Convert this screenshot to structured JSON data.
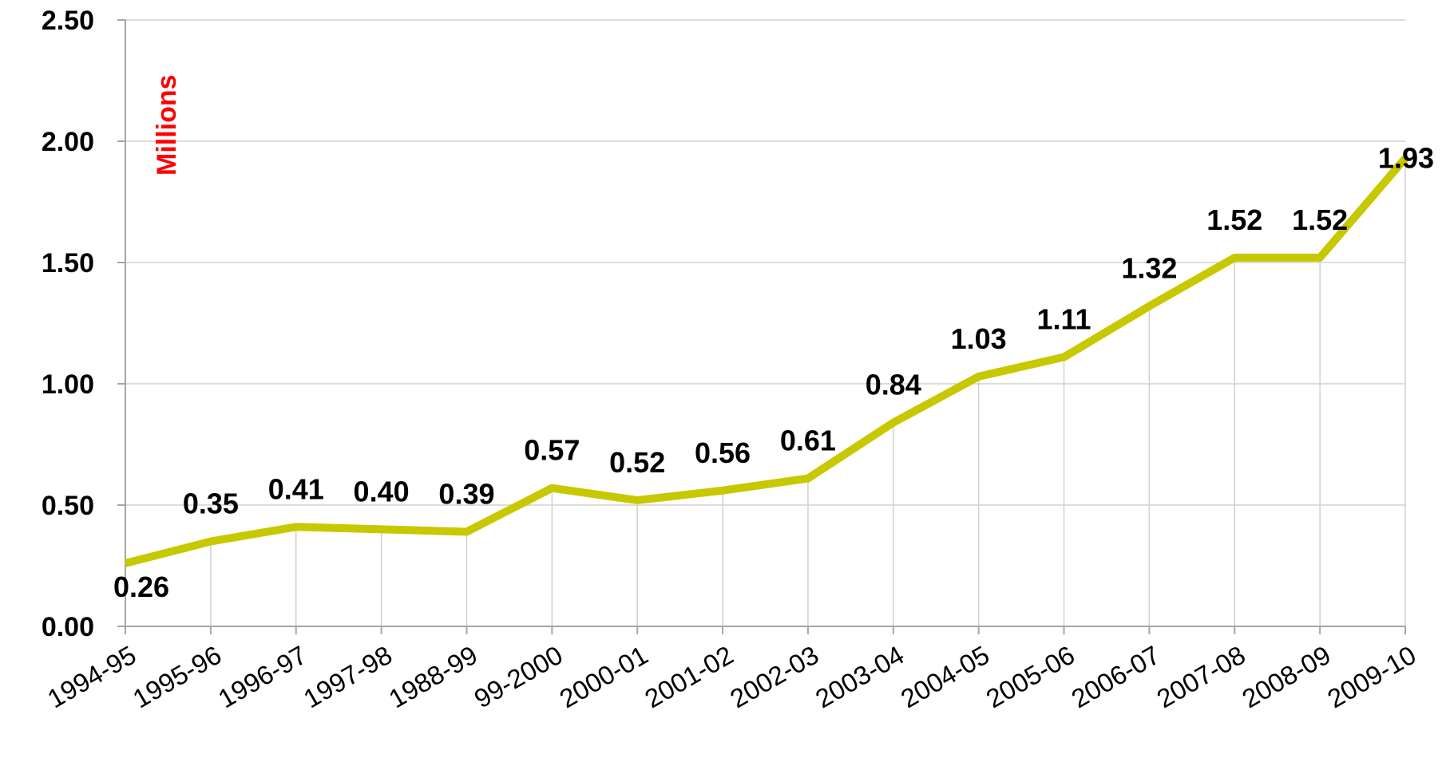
{
  "chart_data": {
    "type": "line",
    "unit_label": "Millions",
    "categories": [
      "1994-95",
      "1995-96",
      "1996-97",
      "1997-98",
      "1988-99",
      "99-2000",
      "2000-01",
      "2001-02",
      "2002-03",
      "2003-04",
      "2004-05",
      "2005-06",
      "2006-07",
      "2007-08",
      "2008-09",
      "2009-10"
    ],
    "series": [
      {
        "values": [
          0.26,
          0.35,
          0.41,
          0.4,
          0.39,
          0.57,
          0.52,
          0.56,
          0.61,
          0.84,
          1.03,
          1.11,
          1.32,
          1.52,
          1.52,
          1.93
        ],
        "labels": [
          "0.26",
          "0.35",
          "0.41",
          "0.40",
          "0.39",
          "0.57",
          "0.52",
          "0.56",
          "0.61",
          "0.84",
          "1.03",
          "1.11",
          "1.32",
          "1.52",
          "1.52",
          "1.93"
        ],
        "color": "#c8c800"
      }
    ],
    "yticks": [
      "0.00",
      "0.50",
      "1.00",
      "1.50",
      "2.00",
      "2.50"
    ],
    "ylim": [
      0,
      2.5
    ],
    "grid": true,
    "colors": {
      "line": "#c8c800",
      "grid": "#d0d0d0",
      "unit_label": "#ff0000",
      "axis": "#a6a6a6"
    }
  }
}
